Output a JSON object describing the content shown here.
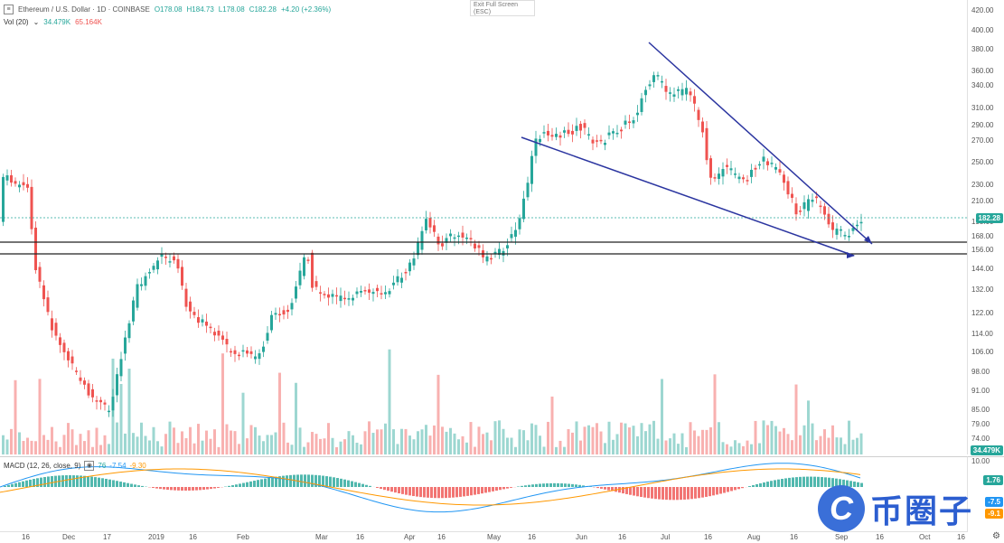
{
  "header": {
    "symbol": "Ethereum / U.S. Dollar · 1D · COINBASE",
    "open": "O178.08",
    "high": "H184.73",
    "low": "L178.08",
    "close": "C182.28",
    "change": "+4.20 (+2.36%)"
  },
  "volume_legend": {
    "label": "Vol (20)",
    "v1": "34.479K",
    "v2": "65.164K"
  },
  "exit_fullscreen": {
    "line1": "Exit Full Screen",
    "line2": "(ESC)"
  },
  "macd_legend": {
    "label": "MACD (12, 26, close, 9)",
    "v1": "76",
    "v2": "-7.54",
    "v3": "-9.30"
  },
  "price_axis_labels": [
    "420.00",
    "400.00",
    "380.00",
    "360.00",
    "340.00",
    "310.00",
    "290.00",
    "270.00",
    "250.00",
    "230.00",
    "210.00",
    "195.00",
    "182.28",
    "168.00",
    "156.00",
    "144.00",
    "132.00",
    "122.00",
    "114.00",
    "106.00",
    "98.00",
    "91.00",
    "85.00",
    "79.00",
    "74.00",
    "34.479K"
  ],
  "price_badge": "182.28",
  "volume_badge": "34.479K",
  "macd_axis_labels": [
    "10.00",
    "1.76",
    "-7.5",
    "-9.1"
  ],
  "time_axis_labels": [
    "16",
    "Dec",
    "17",
    "2019",
    "16",
    "Feb",
    "Mar",
    "16",
    "Apr",
    "16",
    "May",
    "16",
    "Jun",
    "16",
    "Jul",
    "16",
    "Aug",
    "16",
    "Sep",
    "16",
    "Oct",
    "16"
  ],
  "watermark": {
    "logo": "C",
    "text": "币圈子"
  },
  "colors": {
    "up": "#26a69a",
    "down": "#ef5350",
    "trendline": "#2b35a0",
    "level": "#222222",
    "macd": "#2196f3",
    "signal": "#ff9800",
    "badge_blue": "#2196f3",
    "badge_green": "#26a69a"
  },
  "icons": [
    "collapse-icon",
    "eye-icon",
    "gear-icon"
  ]
}
